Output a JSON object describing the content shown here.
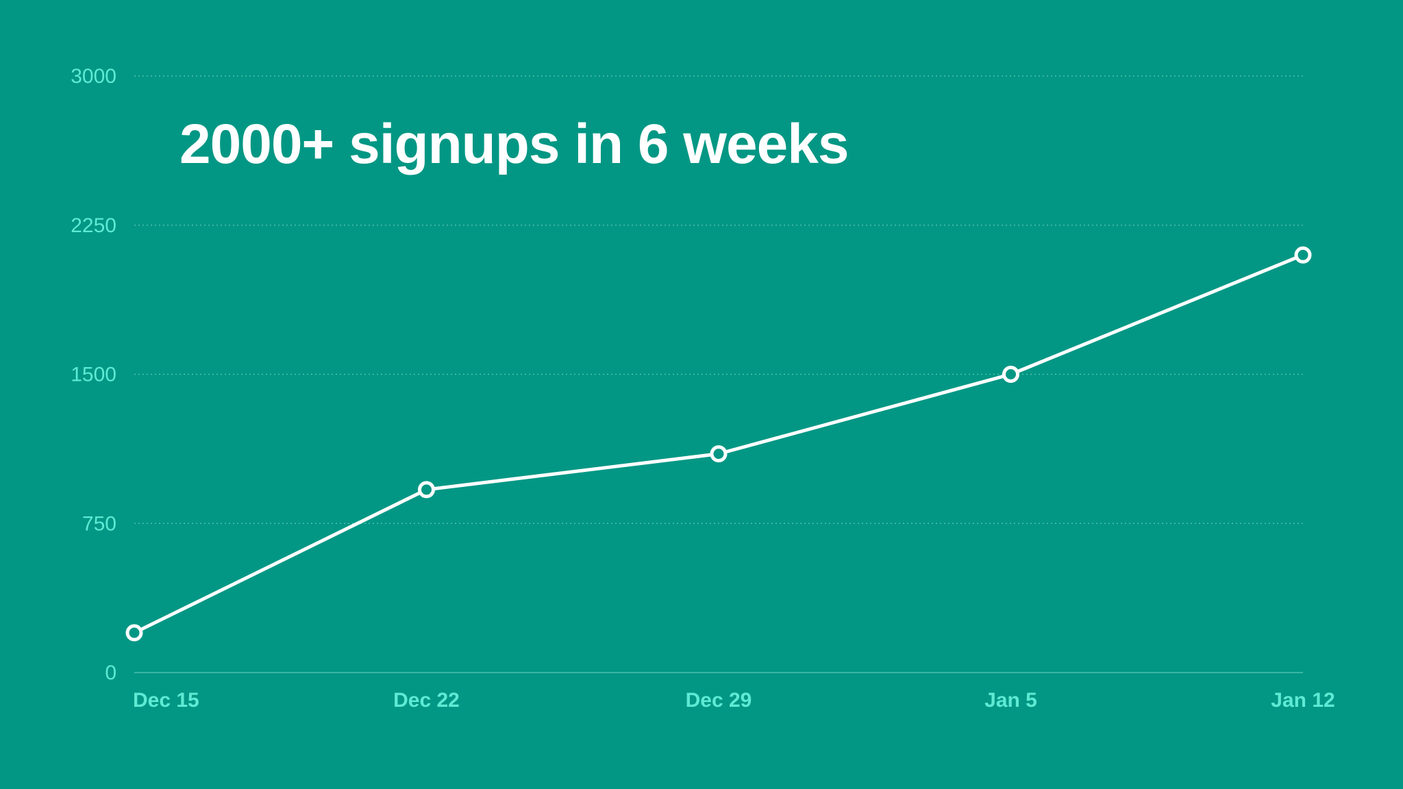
{
  "chart_data": {
    "type": "line",
    "title": "2000+ signups in 6 weeks",
    "x": [
      "Dec 15",
      "Dec 22",
      "Dec 29",
      "Jan 5",
      "Jan 12"
    ],
    "values": [
      200,
      920,
      1100,
      1500,
      2100
    ],
    "xlabel": "",
    "ylabel": "",
    "ylim": [
      0,
      3000
    ],
    "yticks": [
      "0",
      "750",
      "1500",
      "2250",
      "3000"
    ],
    "grid": true,
    "legend": "none",
    "markers": "hollow circles"
  },
  "colors": {
    "background": "#029784",
    "line": "#ffffff",
    "marker_fill": "#029784",
    "tick_text": "#5EEAD4",
    "grid": "#4FC1AE"
  }
}
